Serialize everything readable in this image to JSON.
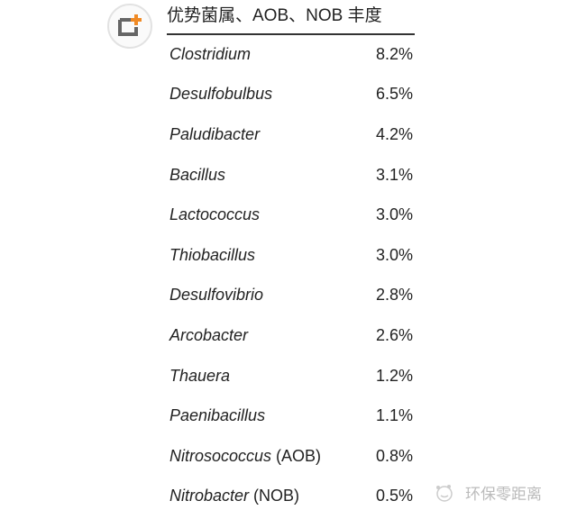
{
  "header": {
    "title": "优势菌属、AOB、NOB  丰度"
  },
  "colors": {
    "logo_accent": "#f08a24",
    "logo_gray": "#666666"
  },
  "rows": [
    {
      "name": "Clostridium",
      "suffix": "",
      "value": "8.2%"
    },
    {
      "name": "Desulfobulbus",
      "suffix": "",
      "value": "6.5%"
    },
    {
      "name": "Paludibacter",
      "suffix": "",
      "value": "4.2%"
    },
    {
      "name": "Bacillus",
      "suffix": "",
      "value": "3.1%"
    },
    {
      "name": "Lactococcus",
      "suffix": "",
      "value": "3.0%"
    },
    {
      "name": "Thiobacillus",
      "suffix": "",
      "value": "3.0%"
    },
    {
      "name": "Desulfovibrio",
      "suffix": "",
      "value": "2.8%"
    },
    {
      "name": "Arcobacter",
      "suffix": "",
      "value": "2.6%"
    },
    {
      "name": "Thauera",
      "suffix": "",
      "value": "1.2%"
    },
    {
      "name": "Paenibacillus",
      "suffix": "",
      "value": "1.1%"
    },
    {
      "name": "Nitrosococcus",
      "suffix": " (AOB)",
      "value": "0.8%"
    },
    {
      "name": "Nitrobacter",
      "suffix": " (NOB)",
      "value": "0.5%"
    }
  ],
  "watermark": {
    "text": "环保零距离",
    "icon": "wechat-icon"
  }
}
